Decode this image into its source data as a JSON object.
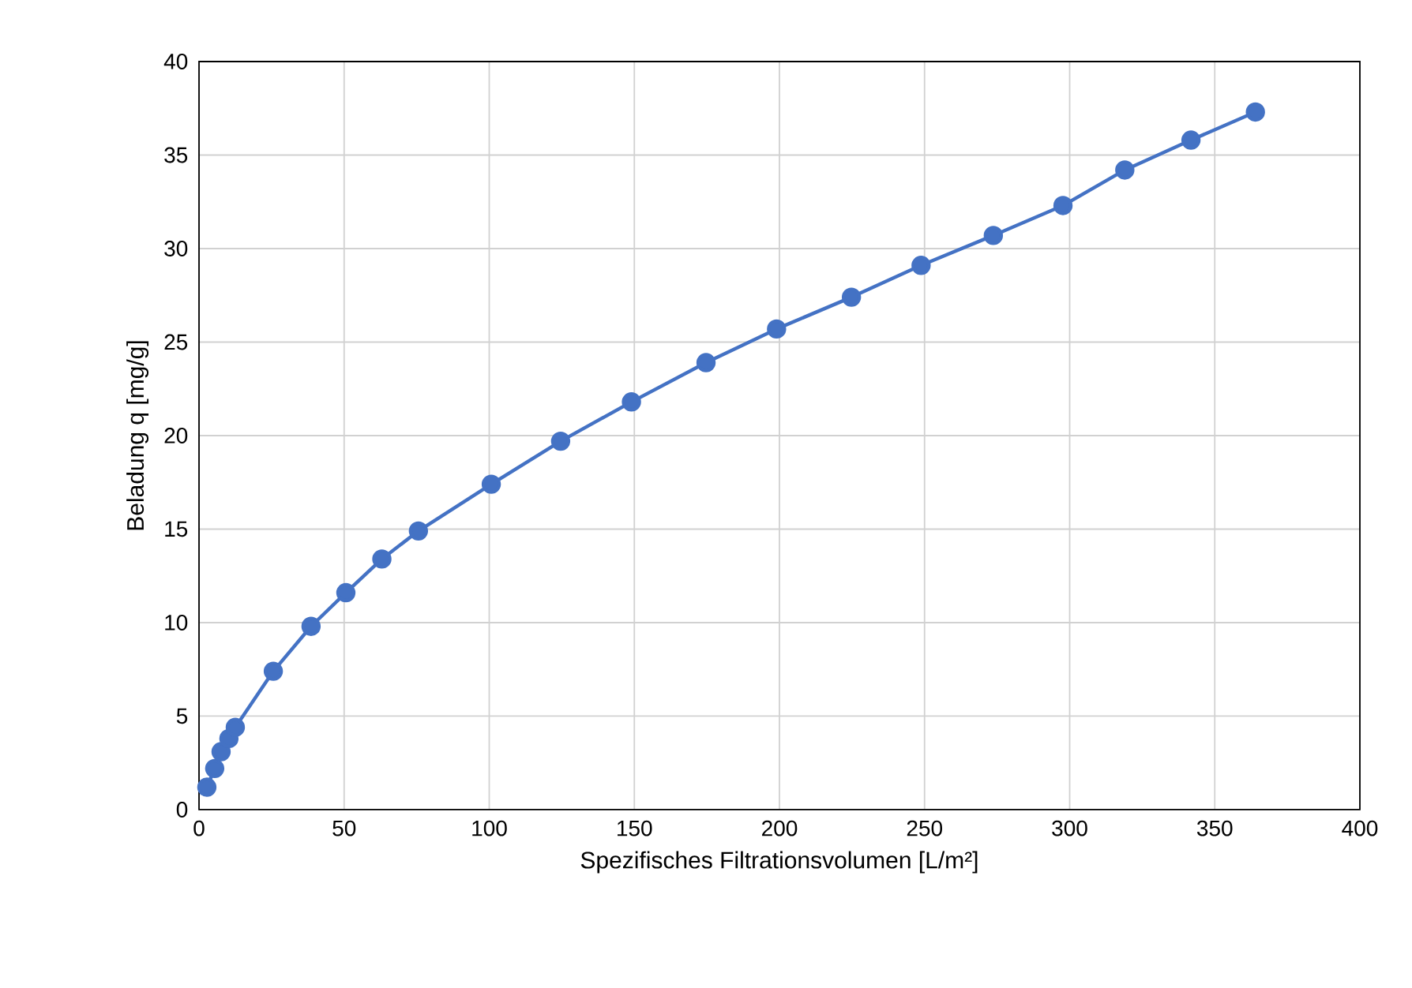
{
  "chart_data": {
    "type": "line",
    "xlabel": "Spezifisches Filtrationsvolumen [L/m²]",
    "ylabel": "Beladung q [mg/g]",
    "x": [
      2.7,
      5.4,
      7.6,
      10.3,
      12.5,
      25.6,
      38.6,
      50.6,
      63,
      75.6,
      100.7,
      124.6,
      149,
      174.7,
      199,
      224.8,
      248.8,
      273.7,
      297.7,
      319,
      341.8,
      364
    ],
    "series": [
      {
        "color": "#4472c4",
        "values": [
          1.2,
          2.2,
          3.1,
          3.8,
          4.4,
          7.4,
          9.8,
          11.6,
          13.4,
          14.9,
          17.4,
          19.7,
          21.8,
          23.9,
          25.7,
          27.4,
          29.1,
          30.7,
          32.3,
          34.2,
          35.8,
          37.3
        ]
      }
    ],
    "xlim": [
      0,
      400
    ],
    "ylim": [
      0,
      40
    ],
    "xticks": [
      0,
      50,
      100,
      150,
      200,
      250,
      300,
      350,
      400
    ],
    "yticks": [
      0,
      5,
      10,
      15,
      20,
      25,
      30,
      35,
      40
    ],
    "grid": true,
    "marker": "circle",
    "line_style": "solid"
  }
}
